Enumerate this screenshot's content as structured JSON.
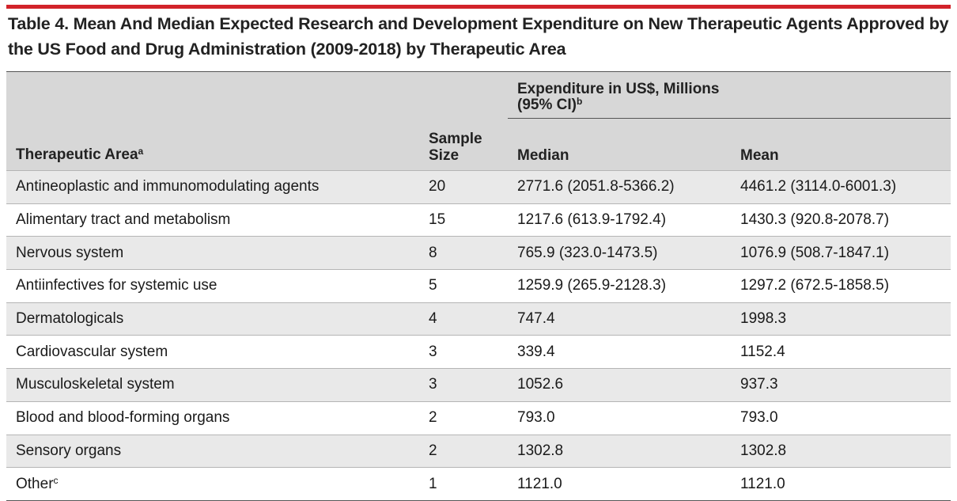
{
  "title": "Table 4. Mean And Median Expected Research and Development Expenditure on New Therapeutic Agents Approved by the US Food and Drug Administration (2009-2018) by Therapeutic Area",
  "header": {
    "therapeutic_area": "Therapeutic Area",
    "therapeutic_area_sup": "a",
    "sample_size_line1": "Sample",
    "sample_size_line2": "Size",
    "expenditure_line1": "Expenditure in US$, Millions",
    "expenditure_line2": "(95% CI)",
    "expenditure_sup": "b",
    "median": "Median",
    "mean": "Mean"
  },
  "rows": [
    {
      "area": "Antineoplastic and immunomodulating agents",
      "sup": "",
      "size": "20",
      "median": "2771.6 (2051.8-5366.2)",
      "mean": "4461.2 (3114.0-6001.3)"
    },
    {
      "area": "Alimentary tract and metabolism",
      "sup": "",
      "size": "15",
      "median": "1217.6 (613.9-1792.4)",
      "mean": "1430.3 (920.8-2078.7)"
    },
    {
      "area": "Nervous system",
      "sup": "",
      "size": "8",
      "median": "765.9 (323.0-1473.5)",
      "mean": "1076.9 (508.7-1847.1)"
    },
    {
      "area": "Antiinfectives for systemic use",
      "sup": "",
      "size": "5",
      "median": "1259.9 (265.9-2128.3)",
      "mean": "1297.2 (672.5-1858.5)"
    },
    {
      "area": "Dermatologicals",
      "sup": "",
      "size": "4",
      "median": "747.4",
      "mean": "1998.3"
    },
    {
      "area": "Cardiovascular system",
      "sup": "",
      "size": "3",
      "median": "339.4",
      "mean": "1152.4"
    },
    {
      "area": "Musculoskeletal system",
      "sup": "",
      "size": "3",
      "median": "1052.6",
      "mean": "937.3"
    },
    {
      "area": "Blood and blood-forming organs",
      "sup": "",
      "size": "2",
      "median": "793.0",
      "mean": "793.0"
    },
    {
      "area": "Sensory organs",
      "sup": "",
      "size": "2",
      "median": "1302.8",
      "mean": "1302.8"
    },
    {
      "area": "Other",
      "sup": "c",
      "size": "1",
      "median": "1121.0",
      "mean": "1121.0"
    }
  ],
  "colors": {
    "accent_rule": "#d2232a",
    "header_bg": "#d7d7d7",
    "stripe_bg": "#e9e9e9"
  }
}
